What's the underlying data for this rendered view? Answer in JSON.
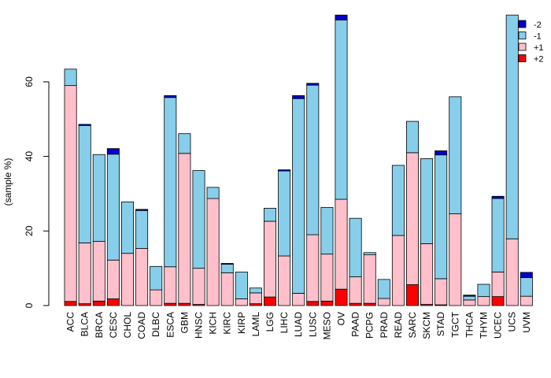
{
  "chart_data": {
    "type": "bar",
    "stacked": true,
    "title": "",
    "xlabel": "",
    "ylabel": "(sample %)",
    "ylim": [
      0,
      78
    ],
    "yticks": [
      0,
      20,
      40,
      60
    ],
    "legend_position": "top-right",
    "categories": [
      "ACC",
      "BLCA",
      "BRCA",
      "CESC",
      "CHOL",
      "COAD",
      "DLBC",
      "ESCA",
      "GBM",
      "HNSC",
      "KICH",
      "KIRC",
      "KIRP",
      "LAML",
      "LGG",
      "LIHC",
      "LUAD",
      "LUSC",
      "MESO",
      "OV",
      "PAAD",
      "PCPG",
      "PRAD",
      "READ",
      "SARC",
      "SKCM",
      "STAD",
      "TGCT",
      "THCA",
      "THYM",
      "UCEC",
      "UCS",
      "UVM"
    ],
    "series": [
      {
        "name": "+2",
        "color": "#ff0000",
        "values": [
          1.1,
          0.5,
          1.2,
          1.8,
          0,
          0,
          0,
          0.6,
          0.6,
          0.3,
          0,
          0,
          0,
          0.5,
          2.3,
          0,
          0,
          1.1,
          1.2,
          4.4,
          0.6,
          0.6,
          0,
          0,
          5.6,
          0.3,
          0.2,
          0,
          0,
          0,
          2.4,
          0,
          0
        ]
      },
      {
        "name": "+1",
        "color": "#ffc0cb",
        "values": [
          57.9,
          16.3,
          16.0,
          10.4,
          14.0,
          15.3,
          4.2,
          9.8,
          40.2,
          9.7,
          28.7,
          8.8,
          1.8,
          2.9,
          20.3,
          13.3,
          3.3,
          17.9,
          12.6,
          24.1,
          7.1,
          13.0,
          1.9,
          18.8,
          35.4,
          16.3,
          7.0,
          24.6,
          1.5,
          2.4,
          6.6,
          17.9,
          2.5
        ]
      },
      {
        "name": "-1",
        "color": "#87ceeb",
        "values": [
          4.4,
          31.5,
          23.3,
          28.4,
          13.8,
          10.2,
          6.3,
          45.4,
          5.3,
          26.2,
          3.0,
          2.3,
          7.2,
          1.3,
          3.5,
          22.8,
          52.2,
          40.1,
          12.5,
          48.1,
          15.7,
          0.6,
          5.1,
          18.8,
          8.4,
          22.8,
          33.2,
          31.4,
          1.0,
          3.3,
          19.7,
          60.0,
          5.0
        ]
      },
      {
        "name": "-2",
        "color": "#0000cd",
        "values": [
          0,
          0.3,
          0,
          1.5,
          0,
          0.3,
          0,
          0.5,
          0,
          0,
          0,
          0.2,
          0,
          0,
          0,
          0.3,
          0.8,
          0.5,
          0,
          1.3,
          0,
          0,
          0,
          0,
          0,
          0,
          1.1,
          0,
          0.3,
          0,
          0.6,
          0,
          1.4
        ]
      }
    ]
  }
}
